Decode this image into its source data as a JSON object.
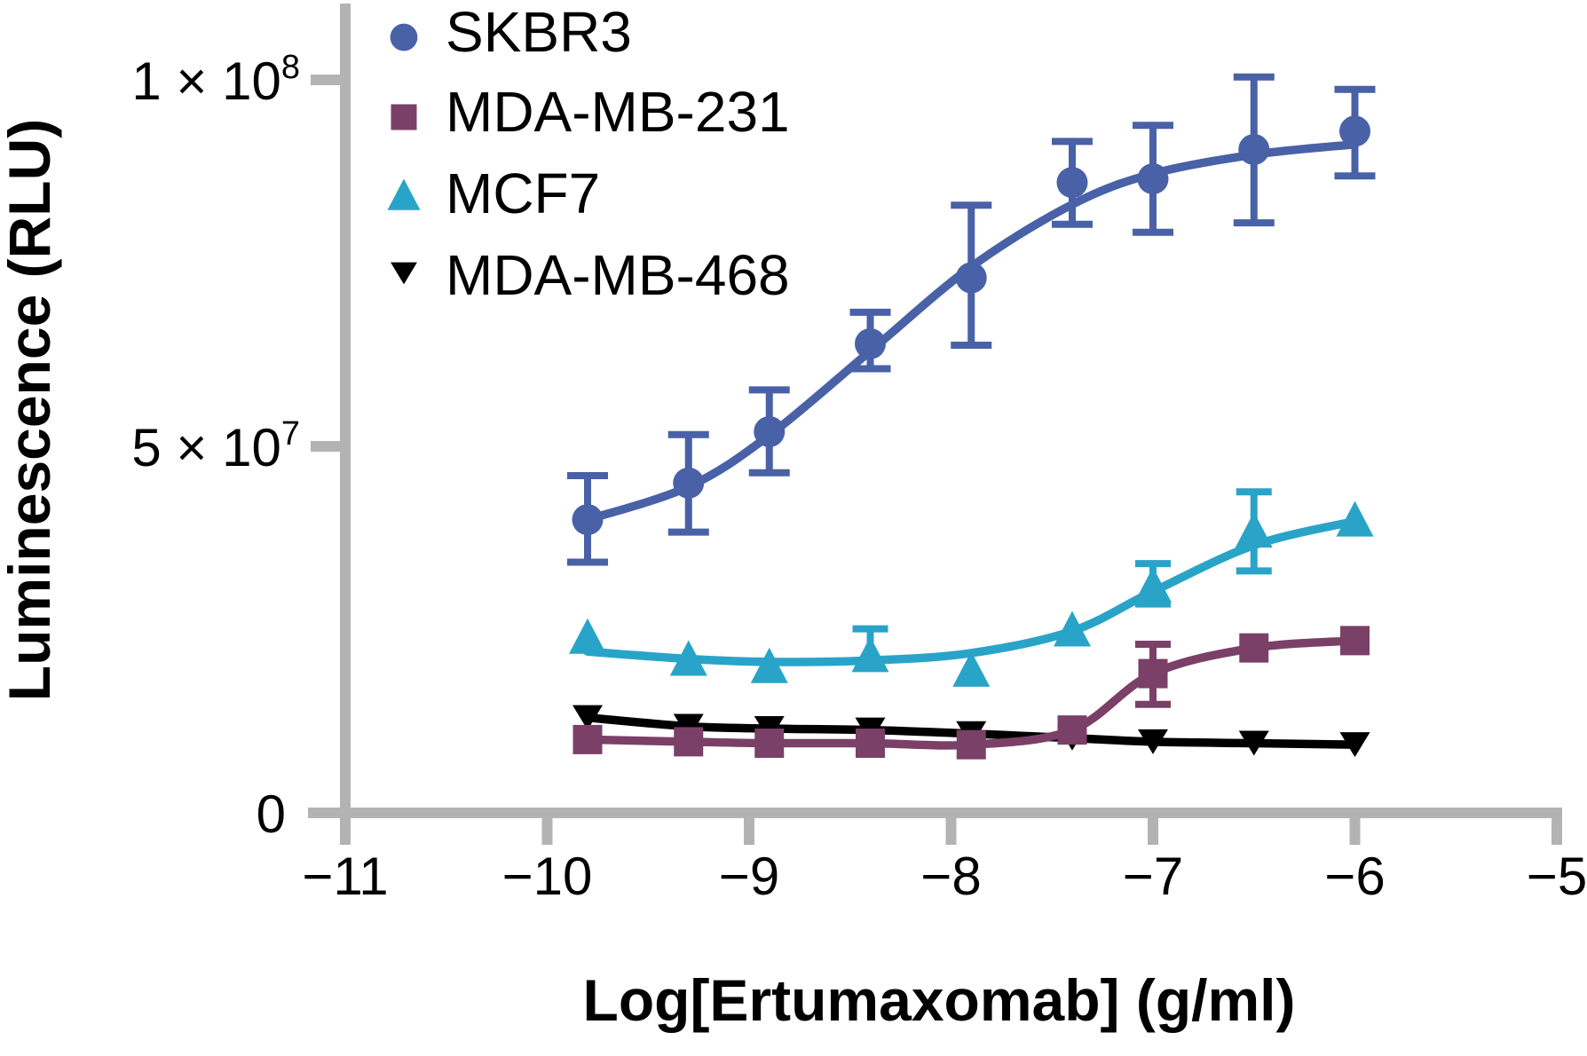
{
  "chart_data": {
    "type": "line",
    "title": "",
    "xlabel": "Log[Ertumaxomab] (g/ml)",
    "ylabel": "Luminescence (RLU)",
    "x_range": [
      -11,
      -5
    ],
    "y_range": [
      0,
      108000000.0
    ],
    "grid": false,
    "axis_color": "#b2b3b2",
    "text_color": "#000000",
    "legend_position": "top-left-inside",
    "x_ticks": [
      {
        "value": -11,
        "label": "−11"
      },
      {
        "value": -10,
        "label": "−10"
      },
      {
        "value": -9,
        "label": "−9"
      },
      {
        "value": -8,
        "label": "−8"
      },
      {
        "value": -7,
        "label": "−7"
      },
      {
        "value": -6,
        "label": "−6"
      },
      {
        "value": -5,
        "label": "−5"
      }
    ],
    "y_ticks": [
      {
        "value": 0,
        "base": "0",
        "sup": ""
      },
      {
        "value": 50000000.0,
        "base": "5 × 10",
        "sup": "7"
      },
      {
        "value": 100000000.0,
        "base": "1 × 10",
        "sup": "8"
      }
    ],
    "x": [
      -9.8,
      -9.3,
      -8.9,
      -8.4,
      -7.9,
      -7.4,
      -7.0,
      -6.5,
      -6.0
    ],
    "series": [
      {
        "name": "SKBR3",
        "marker": "circle",
        "color": "#4961a6",
        "values": [
          40000000.0,
          45000000.0,
          52000000.0,
          64000000.0,
          73000000.0,
          86000000.0,
          86500000.0,
          90500000.0,
          93000000.0
        ],
        "fit": [
          40000000.0,
          44500000.0,
          51500000.0,
          63000000.0,
          74500000.0,
          83000000.0,
          87200000.0,
          89800000.0,
          91200000.0
        ],
        "err_up": [
          6000000.0,
          6600000.0,
          5700000.0,
          4300000.0,
          9900000.0,
          5600000.0,
          7300000.0,
          9900000.0,
          5700000.0
        ],
        "err_dn": [
          5800000.0,
          6700000.0,
          5600000.0,
          3400000.0,
          9200000.0,
          5700000.0,
          7300000.0,
          10000000.0,
          6100000.0
        ]
      },
      {
        "name": "MDA-MB-231",
        "marker": "square",
        "color": "#7b4067",
        "values": [
          10000000.0,
          9700000.0,
          9500000.0,
          9500000.0,
          9300000.0,
          11300000.0,
          19000000.0,
          22500000.0,
          23500000.0
        ],
        "fit": [
          10000000.0,
          9700000.0,
          9500000.0,
          9500000.0,
          9300000.0,
          11300000.0,
          19000000.0,
          22500000.0,
          23500000.0
        ],
        "err_up": [
          0,
          0,
          0,
          0,
          0,
          0,
          4000000.0,
          0,
          0
        ],
        "err_dn": [
          0,
          0,
          0,
          0,
          0,
          0,
          4200000.0,
          0,
          0
        ]
      },
      {
        "name": "MCF7",
        "marker": "triangle-up",
        "color": "#29a4c8",
        "values": [
          24000000.0,
          21000000.0,
          20000000.0,
          21500000.0,
          19500000.0,
          25000000.0,
          31000000.0,
          38500000.0,
          40000000.0
        ],
        "fit": [
          22000000.0,
          21000000.0,
          20600000.0,
          20800000.0,
          21800000.0,
          24800000.0,
          30200000.0,
          36500000.0,
          39800000.0
        ],
        "err_up": [
          0,
          0,
          0,
          3600000.0,
          0,
          0,
          3000000.0,
          5300000.0,
          0
        ],
        "err_dn": [
          0,
          0,
          0,
          0,
          0,
          0,
          2500000.0,
          5500000.0,
          0
        ]
      },
      {
        "name": "MDA-MB-468",
        "marker": "triangle-down",
        "color": "#000000",
        "values": [
          13000000.0,
          11800000.0,
          11500000.0,
          11300000.0,
          10800000.0,
          10200000.0,
          9700000.0,
          9500000.0,
          9300000.0
        ],
        "fit": [
          13000000.0,
          11800000.0,
          11500000.0,
          11300000.0,
          10800000.0,
          10200000.0,
          9700000.0,
          9500000.0,
          9300000.0
        ],
        "err_up": [
          0,
          0,
          0,
          0,
          0,
          0,
          0,
          0,
          0
        ],
        "err_dn": [
          0,
          0,
          0,
          0,
          0,
          0,
          0,
          0,
          0
        ]
      }
    ],
    "legend_items": [
      "SKBR3",
      "MDA-MB-231",
      "MCF7",
      "MDA-MB-468"
    ]
  }
}
